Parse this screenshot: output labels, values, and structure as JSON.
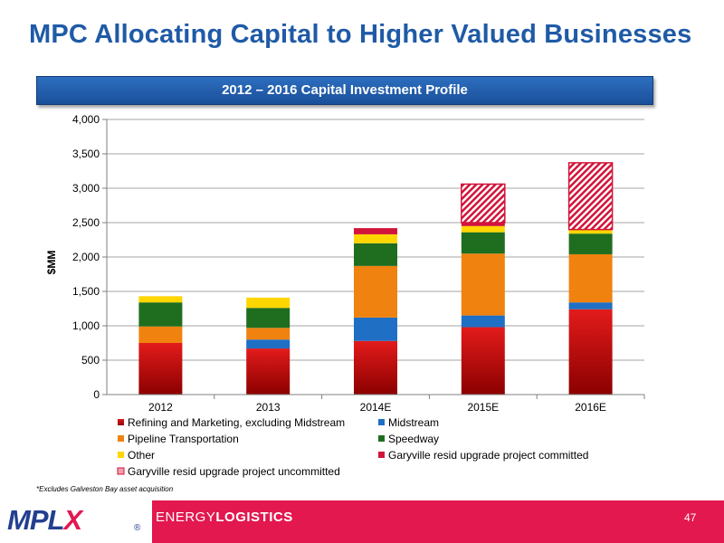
{
  "page": {
    "title": "MPC Allocating Capital to Higher Valued Businesses",
    "banner": "2012 – 2016 Capital Investment Profile",
    "footnote": "*Excludes Galveston Bay asset acquisition",
    "footer": {
      "logo_main": "MPL",
      "logo_x": "X",
      "logo_reg": "®",
      "brand_light": "ENERGY",
      "brand_bold": "LOGISTICS",
      "page_number": "47"
    }
  },
  "colors": {
    "title": "#1f5aa6",
    "banner": "#1f5aa6",
    "footer": "#e2184f"
  },
  "chart_data": {
    "type": "bar",
    "stacked": true,
    "categories": [
      "2012",
      "2013",
      "2014E",
      "2015E",
      "2016E"
    ],
    "ylabel": "$MM",
    "ylim": [
      0,
      4000
    ],
    "yticks": [
      0,
      500,
      1000,
      1500,
      2000,
      2500,
      3000,
      3500,
      4000
    ],
    "ytick_labels": [
      "0",
      "500",
      "1,000",
      "1,500",
      "2,000",
      "2,500",
      "3,000",
      "3,500",
      "4,000"
    ],
    "grid": true,
    "legend_position": "bottom",
    "series": [
      {
        "name": "Refining and Marketing, excluding Midstream",
        "color": "#c00000",
        "pattern": "gradient",
        "values": [
          750,
          670,
          780,
          980,
          1240
        ]
      },
      {
        "name": "Midstream",
        "color": "#1f6fc5",
        "values": [
          0,
          130,
          340,
          170,
          100
        ]
      },
      {
        "name": "Pipeline Transportation",
        "color": "#f0820f",
        "values": [
          240,
          170,
          750,
          900,
          700
        ]
      },
      {
        "name": "Speedway",
        "color": "#1f6e1f",
        "values": [
          350,
          290,
          330,
          310,
          300
        ]
      },
      {
        "name": "Other",
        "color": "#ffd600",
        "values": [
          90,
          150,
          130,
          90,
          60
        ]
      },
      {
        "name": "Garyville resid upgrade project committed",
        "color": "#d2143a",
        "values": [
          0,
          0,
          90,
          50,
          0
        ]
      },
      {
        "name": "Garyville resid upgrade project uncommitted",
        "color": "#d2143a",
        "pattern": "hatch",
        "values": [
          0,
          0,
          0,
          560,
          970
        ]
      }
    ]
  }
}
